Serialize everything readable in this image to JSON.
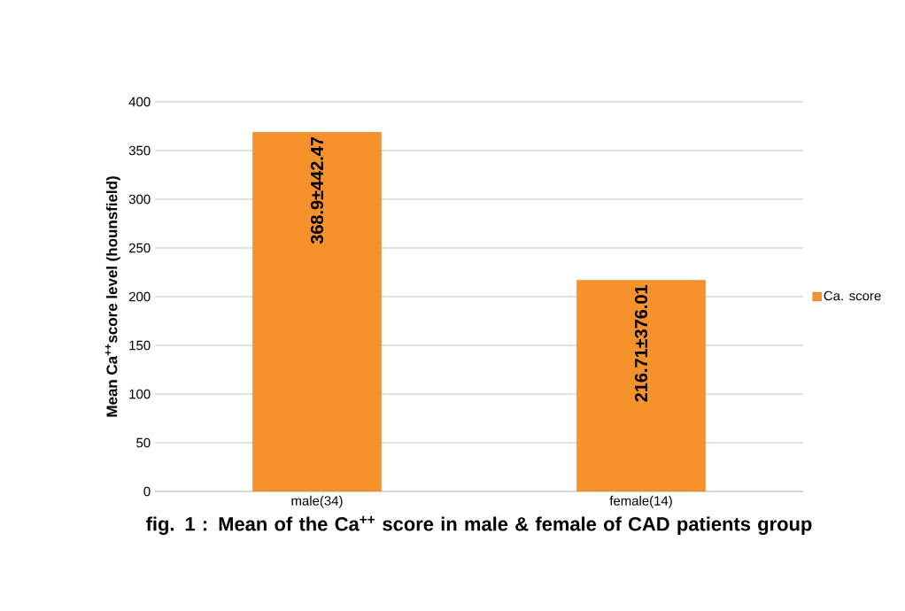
{
  "chart_data": {
    "type": "bar",
    "title": "**fig. 1 : Mean of the Ca$^{++}$ score in male & female of CAD patients group**",
    "ylabel": "Mean Ca$^{++}$score level (hounsfield)",
    "categories": [
      "male(34)",
      "female(14)"
    ],
    "series": [
      {
        "name": "Ca. score",
        "color": "#f5922c",
        "values": [
          368.9,
          216.71
        ],
        "value_labels": [
          "368.9±442.47",
          "216.71±376.01"
        ]
      }
    ],
    "ylim": [
      0,
      400
    ],
    "yticks": [
      0,
      50,
      100,
      150,
      200,
      250,
      300,
      350,
      400
    ],
    "grid": "y",
    "legend": "right"
  }
}
